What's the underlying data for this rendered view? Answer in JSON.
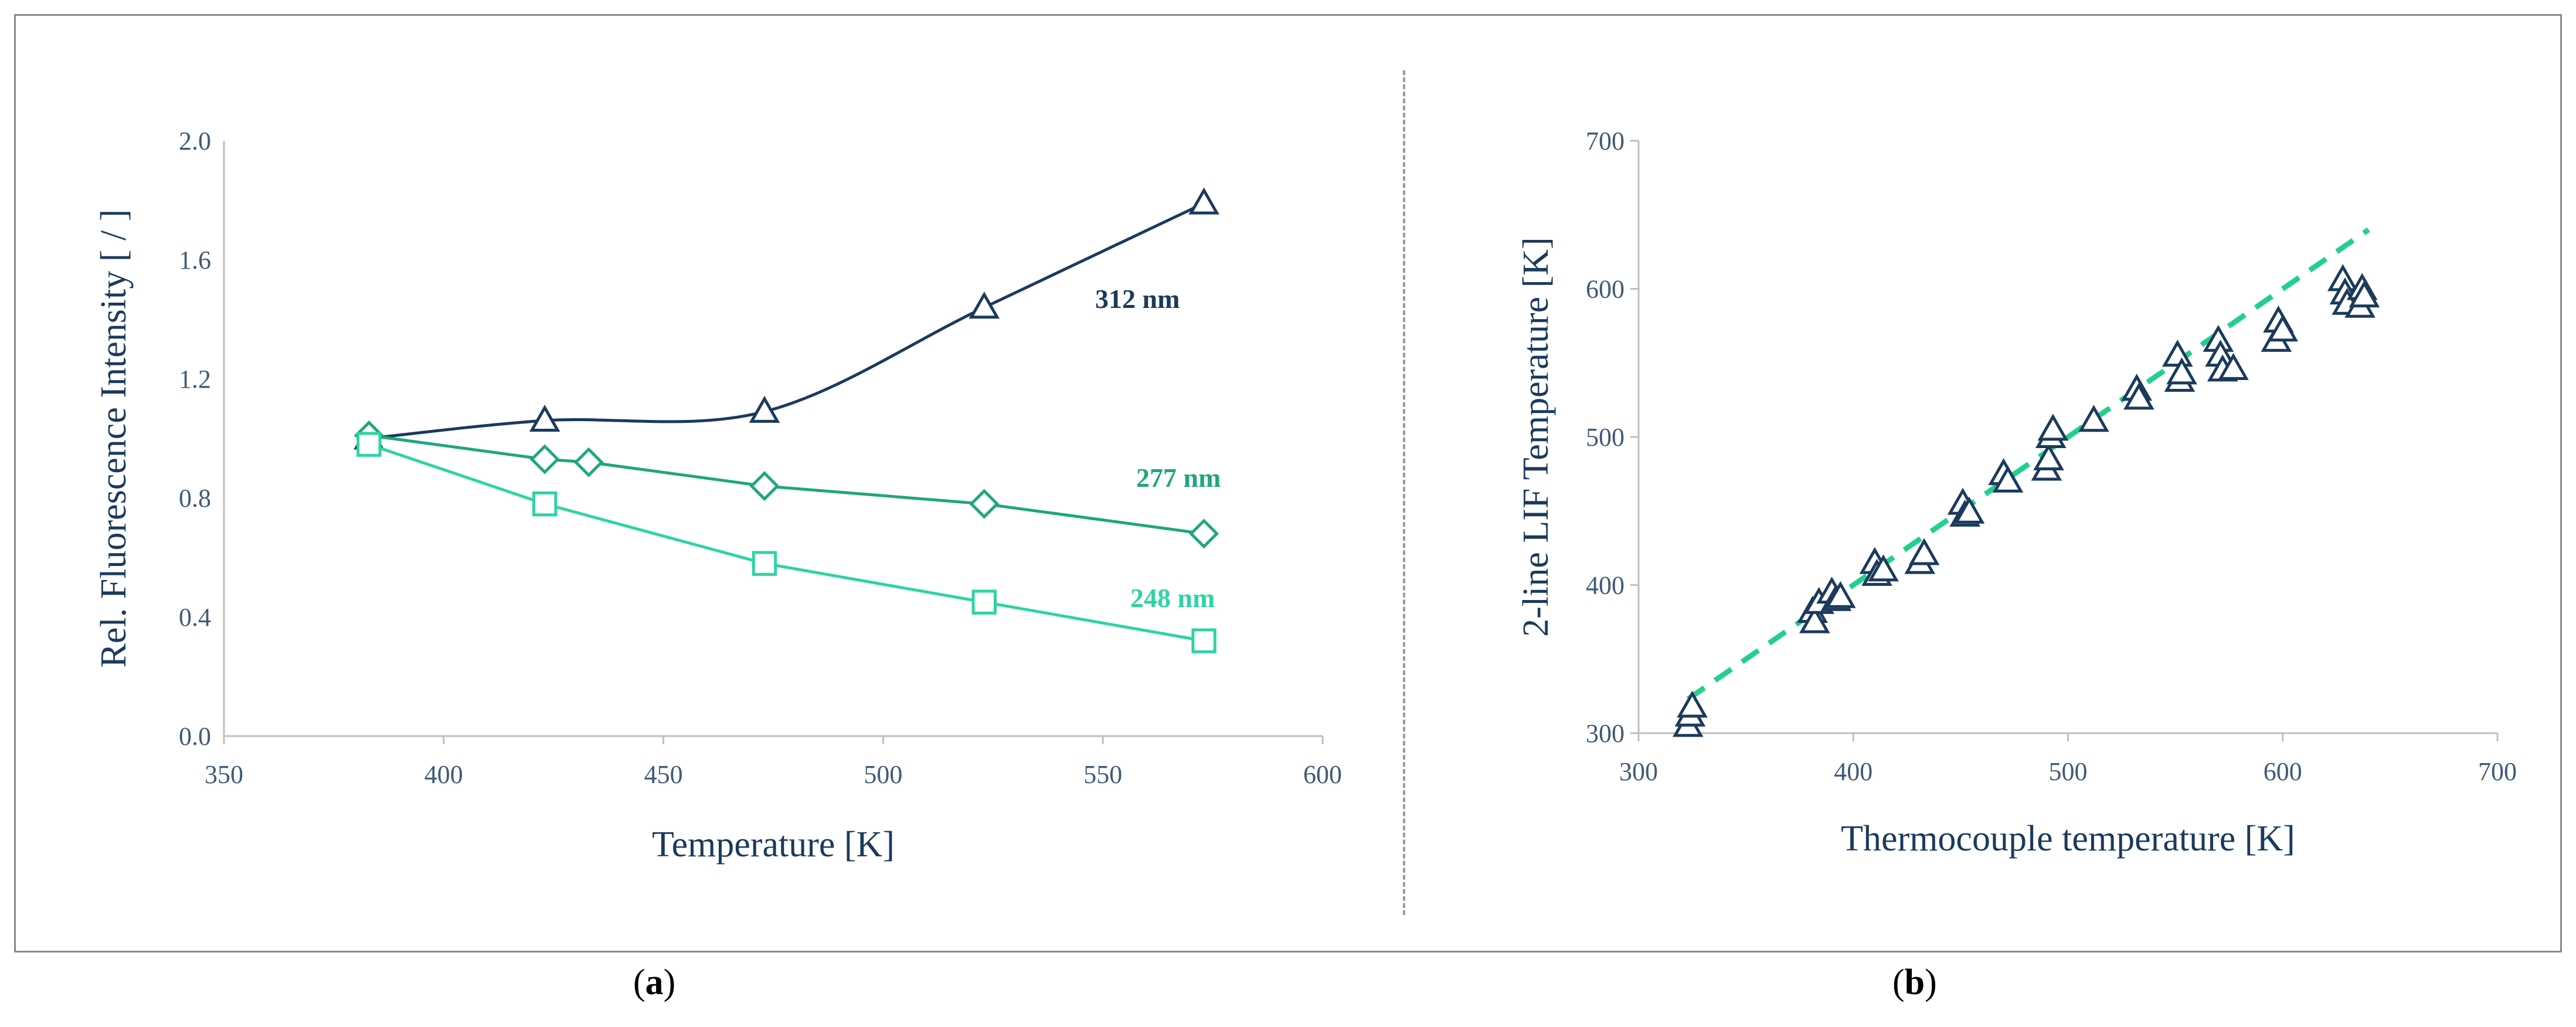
{
  "panels": {
    "a": {
      "label_prefix": "(",
      "label_letter": "a",
      "label_suffix": ")"
    },
    "b": {
      "label_prefix": "(",
      "label_letter": "b",
      "label_suffix": ")"
    }
  },
  "colors": {
    "dark_navy": "#1b3a5c",
    "mid_green": "#1fa67f",
    "light_green": "#2fd3a4",
    "dashed_fit": "#22d08e",
    "axis": "#bfbfbf"
  },
  "chart_data": [
    {
      "type": "line",
      "xlabel": "Temperature [K]",
      "ylabel": "Rel. Fluorescence Intensity [ / ]",
      "xlim": [
        350,
        600
      ],
      "ylim": [
        0.0,
        2.0
      ],
      "xticks": [
        350,
        400,
        450,
        500,
        550,
        600
      ],
      "yticks": [
        "0.0",
        "0.4",
        "0.8",
        "1.2",
        "1.6",
        "2.0"
      ],
      "grid": false,
      "series": [
        {
          "name": "312 nm",
          "marker": "triangle",
          "color": "#1b3a5c",
          "x": [
            383,
            423,
            473,
            523,
            573
          ],
          "y": [
            1.0,
            1.06,
            1.09,
            1.44,
            1.79
          ]
        },
        {
          "name": "277 nm",
          "marker": "diamond",
          "color": "#1fa67f",
          "x": [
            383,
            423,
            433,
            473,
            523,
            573
          ],
          "y": [
            1.01,
            0.93,
            0.92,
            0.84,
            0.78,
            0.68
          ]
        },
        {
          "name": "248 nm",
          "marker": "square",
          "color": "#2fd3a4",
          "x": [
            383,
            423,
            473,
            523,
            573
          ],
          "y": [
            0.98,
            0.78,
            0.58,
            0.45,
            0.32
          ]
        }
      ]
    },
    {
      "type": "scatter",
      "xlabel": "Thermocouple temperature [K]",
      "ylabel": "2-line LIF Temperature [K]",
      "xlim": [
        300,
        700
      ],
      "ylim": [
        300,
        700
      ],
      "xticks": [
        300,
        400,
        500,
        600,
        700
      ],
      "yticks": [
        300,
        400,
        500,
        600,
        700
      ],
      "grid": false,
      "fit_line": {
        "style": "dashed",
        "color": "#22d08e",
        "x": [
          323,
          640
        ],
        "y": [
          323,
          640
        ]
      },
      "series": [
        {
          "marker": "triangle",
          "color": "#1b3a5c",
          "points": [
            [
              323,
              305
            ],
            [
              324,
              312
            ],
            [
              325,
              318
            ],
            [
              381,
              382
            ],
            [
              382,
              375
            ],
            [
              384,
              388
            ],
            [
              390,
              395
            ],
            [
              392,
              390
            ],
            [
              394,
              392
            ],
            [
              410,
              415
            ],
            [
              411,
              407
            ],
            [
              414,
              410
            ],
            [
              431,
              415
            ],
            [
              433,
              421
            ],
            [
              451,
              455
            ],
            [
              452,
              447
            ],
            [
              454,
              449
            ],
            [
              470,
              475
            ],
            [
              472,
              470
            ],
            [
              490,
              478
            ],
            [
              491,
              485
            ],
            [
              492,
              500
            ],
            [
              493,
              505
            ],
            [
              512,
              511
            ],
            [
              532,
              532
            ],
            [
              533,
              526
            ],
            [
              551,
              555
            ],
            [
              552,
              538
            ],
            [
              553,
              543
            ],
            [
              570,
              565
            ],
            [
              571,
              555
            ],
            [
              572,
              545
            ],
            [
              577,
              546
            ],
            [
              597,
              565
            ],
            [
              598,
              578
            ],
            [
              600,
              572
            ],
            [
              628,
              606
            ],
            [
              629,
              597
            ],
            [
              630,
              590
            ],
            [
              636,
              588
            ],
            [
              637,
              600
            ],
            [
              638,
              595
            ]
          ]
        }
      ]
    }
  ]
}
